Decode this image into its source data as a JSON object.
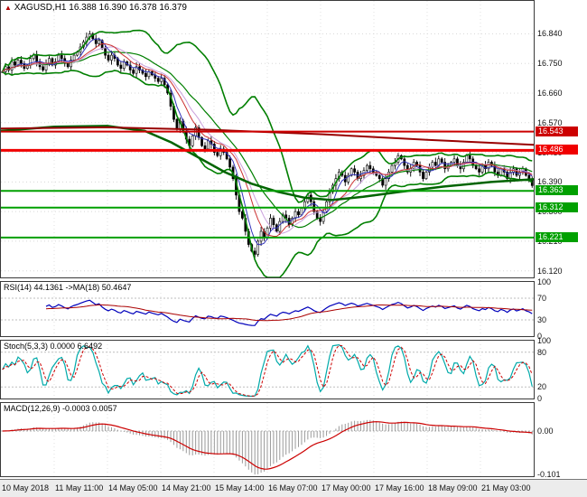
{
  "header": {
    "arrow_icon": "▲",
    "symbol_period": "XAGUSD,H1",
    "quotes": "16.388 16.390 16.378 16.379"
  },
  "indicators": {
    "rsi_title": "RSI(14) 44.1361   ->MA(18) 50.4647",
    "stoch_title": "Stoch(5,3,3) 0.0000 6.6492",
    "macd_title": "MACD(12,26,9) -0.0003 0.0057"
  },
  "axes": {
    "time_labels": [
      "10 May 2018",
      "11 May 11:00",
      "14 May 05:00",
      "14 May 21:00",
      "15 May 14:00",
      "16 May 07:00",
      "17 May 00:00",
      "17 May 16:00",
      "18 May 09:00",
      "21 May 03:00"
    ],
    "main_price_ticks": [
      "16.840",
      "16.750",
      "16.660",
      "16.570",
      "16.480",
      "16.390",
      "16.300",
      "16.210",
      "16.120"
    ],
    "rsi_ticks": [
      "100",
      "70",
      "30",
      "0"
    ],
    "stoch_ticks": [
      "100",
      "80",
      "20",
      "0"
    ],
    "macd_ticks": [
      "0.00",
      "-0.101"
    ]
  },
  "levels": [
    {
      "price": 16.543,
      "label": "16.543",
      "color": "#cc0000",
      "width": 2
    },
    {
      "price": 16.486,
      "label": "16.486",
      "color": "#f00000",
      "width": 3
    },
    {
      "price": 16.363,
      "label": "16.363",
      "color": "#00a000",
      "width": 2
    },
    {
      "price": 16.312,
      "label": "16.312",
      "color": "#00a000",
      "width": 2
    },
    {
      "price": 16.221,
      "label": "16.221",
      "color": "#00a000",
      "width": 2
    }
  ],
  "chart_data": [
    {
      "type": "candlestick",
      "title": "XAGUSD,H1",
      "ohlc_display": {
        "open": "16.388",
        "high": "16.390",
        "low": "16.378",
        "close": "16.379"
      },
      "ylim": [
        16.1,
        16.94
      ],
      "x_labels": [
        "10 May 2018",
        "11 May 11:00",
        "14 May 05:00",
        "14 May 21:00",
        "15 May 14:00",
        "16 May 07:00",
        "17 May 00:00",
        "17 May 16:00",
        "18 May 09:00",
        "21 May 03:00"
      ],
      "closes": [
        16.725,
        16.74,
        16.73,
        16.755,
        16.745,
        16.76,
        16.75,
        16.735,
        16.745,
        16.765,
        16.775,
        16.755,
        16.74,
        16.73,
        16.75,
        16.765,
        16.745,
        16.755,
        16.775,
        16.765,
        16.75,
        16.74,
        16.76,
        16.775,
        16.785,
        16.8,
        16.815,
        16.83,
        16.84,
        16.825,
        16.81,
        16.82,
        16.795,
        16.775,
        16.76,
        16.775,
        16.765,
        16.745,
        16.735,
        16.755,
        16.745,
        16.73,
        16.72,
        16.74,
        16.73,
        16.72,
        16.71,
        16.725,
        16.715,
        16.705,
        16.695,
        16.705,
        16.685,
        16.66,
        16.62,
        16.58,
        16.55,
        16.575,
        16.545,
        16.52,
        16.5,
        16.53,
        16.555,
        16.525,
        16.5,
        16.49,
        16.515,
        16.505,
        16.48,
        16.47,
        16.49,
        16.48,
        16.46,
        16.435,
        16.4,
        16.35,
        16.3,
        16.28,
        16.24,
        16.2,
        16.18,
        16.17,
        16.21,
        16.24,
        16.22,
        16.25,
        16.28,
        16.26,
        16.24,
        16.27,
        16.29,
        16.28,
        16.26,
        16.28,
        16.3,
        16.29,
        16.31,
        16.33,
        16.35,
        16.33,
        16.3,
        16.28,
        16.27,
        16.3,
        16.33,
        16.36,
        16.38,
        16.4,
        16.42,
        16.41,
        16.39,
        16.41,
        16.43,
        16.42,
        16.4,
        16.41,
        16.425,
        16.44,
        16.43,
        16.42,
        16.41,
        16.4,
        16.38,
        16.4,
        16.42,
        16.44,
        16.45,
        16.47,
        16.46,
        16.44,
        16.42,
        16.43,
        16.45,
        16.44,
        16.42,
        16.4,
        16.42,
        16.435,
        16.45,
        16.44,
        16.46,
        16.45,
        16.43,
        16.44,
        16.45,
        16.46,
        16.44,
        16.43,
        16.45,
        16.47,
        16.46,
        16.44,
        16.43,
        16.42,
        16.44,
        16.43,
        16.45,
        16.44,
        16.42,
        16.41,
        16.43,
        16.42,
        16.4,
        16.42,
        16.43,
        16.41,
        16.42,
        16.43,
        16.41,
        16.4,
        16.379
      ],
      "overlays": {
        "bollinger": {
          "period": 20,
          "deviation": 2.0,
          "color": "#007f00"
        },
        "ma_fast_blue": {
          "period": 5,
          "color": "#3333bb"
        },
        "ma_fast_red": {
          "period": 10,
          "color": "#cc3333"
        },
        "ma_lilac": {
          "period": 13,
          "color": "#c9a0dc"
        },
        "ma_slow_green": {
          "color": "#006400",
          "width": 2.5,
          "anchors": [
            [
              0,
              16.545
            ],
            [
              0.1,
              16.558
            ],
            [
              0.2,
              16.56
            ],
            [
              0.27,
              16.545
            ],
            [
              0.32,
              16.51
            ],
            [
              0.37,
              16.465
            ],
            [
              0.42,
              16.42
            ],
            [
              0.47,
              16.385
            ],
            [
              0.52,
              16.36
            ],
            [
              0.57,
              16.342
            ],
            [
              0.62,
              16.335
            ],
            [
              0.68,
              16.345
            ],
            [
              0.75,
              16.36
            ],
            [
              0.83,
              16.376
            ],
            [
              0.92,
              16.39
            ],
            [
              1,
              16.398
            ]
          ]
        },
        "ma_slow_red": {
          "color": "#990000",
          "width": 2,
          "anchors": [
            [
              0,
              16.552
            ],
            [
              0.2,
              16.556
            ],
            [
              0.4,
              16.548
            ],
            [
              0.6,
              16.535
            ],
            [
              0.8,
              16.518
            ],
            [
              1,
              16.503
            ]
          ]
        }
      }
    },
    {
      "type": "line",
      "name": "RSI",
      "params": "14",
      "value": 44.1361,
      "ma_params": "18",
      "ma_value": 50.4647,
      "ylim": [
        0,
        100
      ],
      "level_lines": [
        70,
        30
      ],
      "colors": {
        "rsi": "#0000bb",
        "ma": "#aa0000"
      }
    },
    {
      "type": "line",
      "name": "Stochastic",
      "params": "5,3,3",
      "k_value": 0.0,
      "d_value": 6.6492,
      "ylim": [
        0,
        100
      ],
      "level_lines": [
        80,
        20
      ],
      "colors": {
        "k": "#00aaaa",
        "d": "#cc0000"
      }
    },
    {
      "type": "macd",
      "name": "MACD",
      "params": "12,26,9",
      "macd_value": -0.0003,
      "signal_value": 0.0057,
      "ylim": [
        -0.105,
        0.065
      ],
      "min_label": -0.101,
      "colors": {
        "histogram": "#9a9a9a",
        "signal": "#cc0000"
      }
    }
  ]
}
